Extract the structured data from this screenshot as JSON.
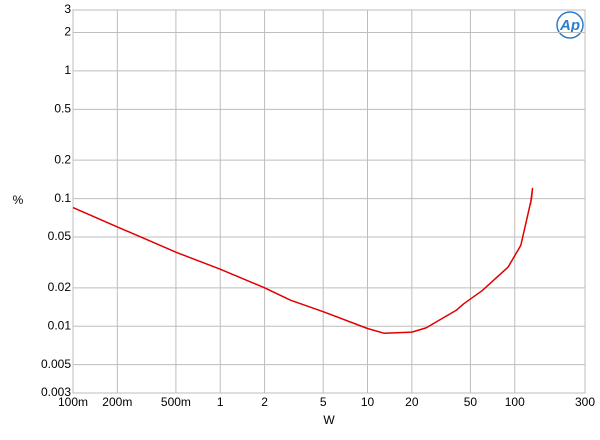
{
  "chart_data": {
    "type": "line",
    "logo": "Ap",
    "x_label": "W",
    "y_label": "%",
    "log_x": true,
    "log_y": true,
    "grid": true,
    "xlim": [
      0.1,
      300
    ],
    "ylim": [
      0.003,
      3
    ],
    "xticks": [
      {
        "value": 0.1,
        "label": "100m"
      },
      {
        "value": 0.2,
        "label": "200m"
      },
      {
        "value": 0.5,
        "label": "500m"
      },
      1,
      2,
      5,
      10,
      20,
      50,
      100,
      300
    ],
    "yticks": [
      0.003,
      0.005,
      0.01,
      0.02,
      0.05,
      0.1,
      0.2,
      0.5,
      1,
      2,
      3
    ],
    "series": [
      {
        "color": "#e00000",
        "x": [
          0.1,
          0.2,
          0.3,
          0.5,
          1,
          2,
          3,
          5,
          10,
          13,
          20,
          25,
          30,
          40,
          45,
          60,
          90,
          110,
          130,
          132,
          128
        ],
        "values": [
          0.085,
          0.06,
          0.049,
          0.038,
          0.028,
          0.02,
          0.016,
          0.013,
          0.0096,
          0.0088,
          0.009,
          0.0097,
          0.011,
          0.0133,
          0.015,
          0.019,
          0.029,
          0.043,
          0.1,
          0.12,
          0.09
        ]
      }
    ]
  }
}
